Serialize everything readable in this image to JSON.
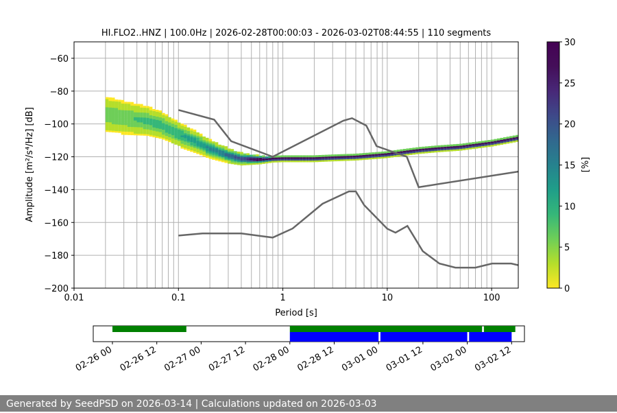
{
  "chart_data": [
    {
      "type": "heatmap",
      "title": "HI.FLO2..HNZ | 100.0Hz | 2026-02-28T00:00:03 - 2026-03-02T08:44:55 | 110 segments",
      "xlabel": "Period [s]",
      "ylabel": "Amplitude [m²/s⁴/Hz] [dB]",
      "x_scale": "log",
      "xlim": [
        0.01,
        180
      ],
      "ylim": [
        -200,
        -50
      ],
      "x_ticks": [
        0.01,
        0.1,
        1,
        10,
        100
      ],
      "x_tick_labels": [
        "0.01",
        "0.1",
        "1",
        "10",
        "100"
      ],
      "y_ticks": [
        -200,
        -180,
        -160,
        -140,
        -120,
        -100,
        -80,
        -60
      ],
      "y_tick_labels": [
        "−200",
        "−180",
        "−160",
        "−140",
        "−120",
        "−100",
        "−80",
        "−60"
      ],
      "grid": true,
      "colorbar": {
        "label": "[%]",
        "range": [
          0,
          30
        ],
        "ticks": [
          0,
          5,
          10,
          15,
          20,
          25,
          30
        ],
        "colormap": "viridis_r"
      },
      "series": [
        {
          "role": "high-noise-model",
          "points": [
            [
              0.1,
              -91.5
            ],
            [
              0.22,
              -97.4
            ],
            [
              0.32,
              -110.5
            ],
            [
              0.8,
              -120.0
            ],
            [
              3.8,
              -98.0
            ],
            [
              4.6,
              -96.5
            ],
            [
              6.3,
              -101.0
            ],
            [
              7.9,
              -113.5
            ],
            [
              15.4,
              -120.0
            ],
            [
              20,
              -138.5
            ],
            [
              180,
              -129.0
            ]
          ]
        },
        {
          "role": "low-noise-model",
          "points": [
            [
              0.1,
              -168.0
            ],
            [
              0.17,
              -166.7
            ],
            [
              0.4,
              -166.7
            ],
            [
              0.8,
              -169.2
            ],
            [
              1.24,
              -163.7
            ],
            [
              2.4,
              -148.6
            ],
            [
              4.3,
              -141.1
            ],
            [
              5.0,
              -141.1
            ],
            [
              6.0,
              -149.4
            ],
            [
              10,
              -163.8
            ],
            [
              12,
              -166.2
            ],
            [
              15.6,
              -162.1
            ],
            [
              21.9,
              -177.5
            ],
            [
              31.6,
              -185.0
            ],
            [
              45,
              -187.5
            ],
            [
              70,
              -187.5
            ],
            [
              101,
              -185.0
            ],
            [
              154,
              -185.0
            ],
            [
              180,
              -186.0
            ]
          ]
        }
      ],
      "psd_median": [
        [
          0.02,
          -94
        ],
        [
          0.03,
          -96
        ],
        [
          0.05,
          -98
        ],
        [
          0.07,
          -101
        ],
        [
          0.1,
          -106
        ],
        [
          0.15,
          -111
        ],
        [
          0.2,
          -115
        ],
        [
          0.3,
          -119
        ],
        [
          0.4,
          -121
        ],
        [
          0.6,
          -121.5
        ],
        [
          1,
          -121
        ],
        [
          2,
          -121
        ],
        [
          3,
          -120.5
        ],
        [
          5,
          -120
        ],
        [
          8,
          -119
        ],
        [
          10,
          -118.5
        ],
        [
          15,
          -117
        ],
        [
          20,
          -116
        ],
        [
          30,
          -115
        ],
        [
          50,
          -114
        ],
        [
          100,
          -111.5
        ],
        [
          180,
          -108.5
        ]
      ]
    },
    {
      "type": "bar",
      "x_tick_labels": [
        "02-26 00",
        "02-26 12",
        "02-27 00",
        "02-27 12",
        "02-28 00",
        "02-28 12",
        "03-01 00",
        "03-01 12",
        "03-02 00",
        "03-02 12"
      ],
      "series": [
        {
          "name": "data-availability",
          "color": "#008000",
          "segments": [
            [
              "02-26 00:00",
              "02-26 20:00"
            ],
            [
              "02-28 00:00",
              "03-02 04:00"
            ],
            [
              "03-02 04:30",
              "03-02 13:00"
            ]
          ]
        },
        {
          "name": "psd-segments",
          "color": "#0000ff",
          "segments": [
            [
              "02-28 00:00",
              "03-01 00:00"
            ],
            [
              "03-01 00:30",
              "03-02 00:00"
            ],
            [
              "03-02 00:30",
              "03-02 12:00"
            ]
          ]
        }
      ]
    }
  ],
  "footer": {
    "text": "Generated by SeedPSD on 2026-03-14 | Calculations updated on 2026-03-03"
  },
  "colors": {
    "grid": "#b0b0b0",
    "model_line": "#666666",
    "footer_bg": "#808080",
    "availability": "#008000",
    "segments": "#0000ff"
  }
}
